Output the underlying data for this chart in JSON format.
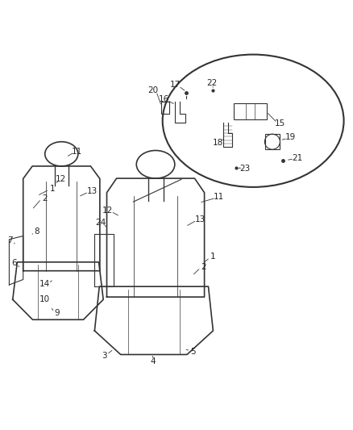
{
  "bg_color": "#ffffff",
  "line_color": "#333333",
  "label_color": "#222222",
  "fig_width": 4.38,
  "fig_height": 5.33
}
